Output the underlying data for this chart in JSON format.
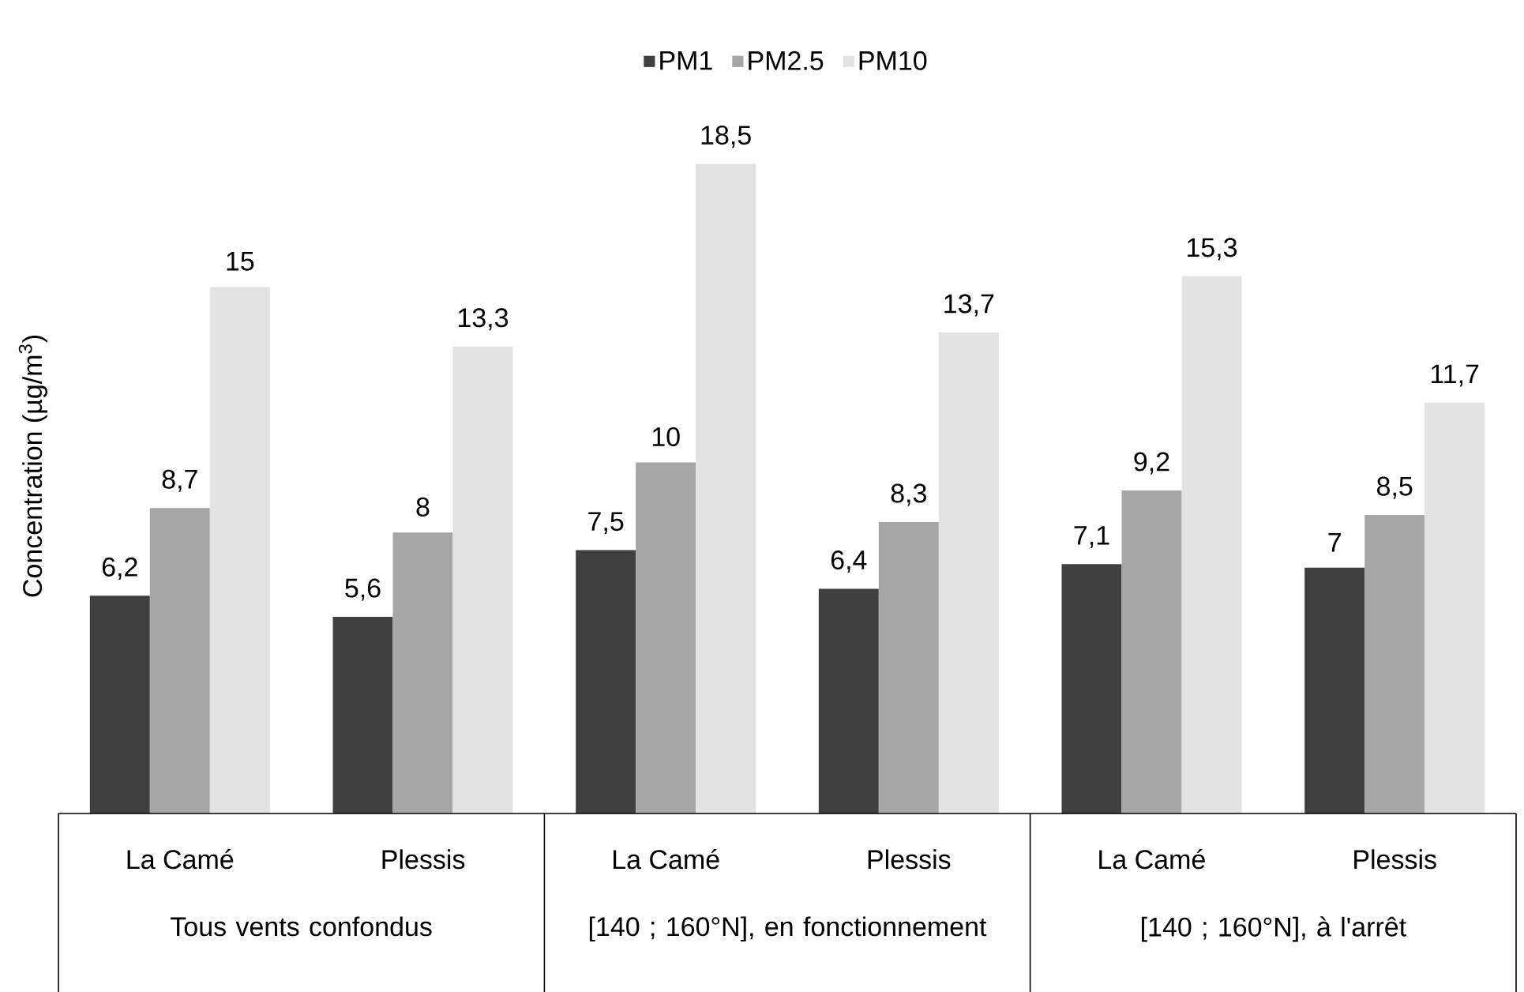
{
  "chart_data": {
    "type": "bar",
    "ylabel": "Concentration (µg/m$^{3}$)",
    "categories": [
      "La Camé",
      "Plessis",
      "La Camé",
      "Plessis",
      "La Camé",
      "Plessis"
    ],
    "series": [
      {
        "name": "PM1",
        "color": "#404040",
        "values": [
          6.2,
          5.6,
          7.5,
          6.4,
          7.1,
          7
        ],
        "value_labels": [
          "6,2",
          "5,6",
          "7,5",
          "6,4",
          "7,1",
          "7"
        ]
      },
      {
        "name": "PM2.5",
        "color": "#a6a6a6",
        "values": [
          8.7,
          8,
          10,
          8.3,
          9.2,
          8.5
        ],
        "value_labels": [
          "8,7",
          "8",
          "10",
          "8,3",
          "9,2",
          "8,5"
        ]
      },
      {
        "name": "PM10",
        "color": "#e3e3e3",
        "values": [
          15,
          13.3,
          18.5,
          13.7,
          15.3,
          11.7
        ],
        "value_labels": [
          "15",
          "13,3",
          "18,5",
          "13,7",
          "15,3",
          "11,7"
        ]
      }
    ],
    "annotations": [
      "Tous vents confondus",
      "[140 ; 160°N], en fonctionnement",
      "[140 ; 160°N], à l'arrêt"
    ],
    "legend": "top"
  }
}
